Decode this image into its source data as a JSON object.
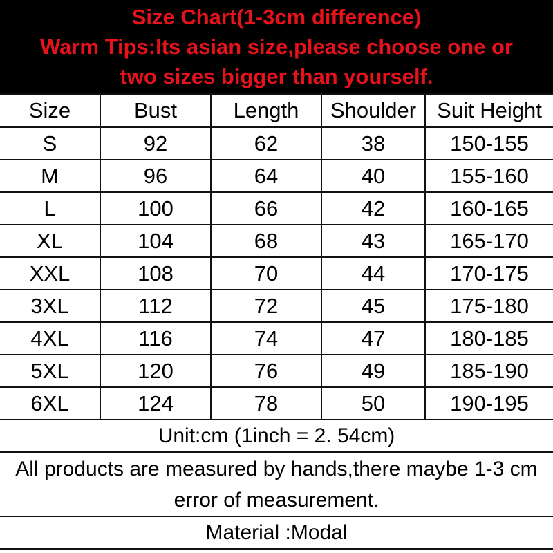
{
  "header": {
    "title": "Size Chart(1-3cm difference)",
    "tip_line1": "Warm Tips:Its asian size,please choose one or",
    "tip_line2": "two sizes bigger than yourself."
  },
  "table": {
    "columns": [
      "Size",
      "Bust",
      "Length",
      "Shoulder",
      "Suit Height"
    ],
    "rows": [
      [
        "S",
        "92",
        "62",
        "38",
        "150-155"
      ],
      [
        "M",
        "96",
        "64",
        "40",
        "155-160"
      ],
      [
        "L",
        "100",
        "66",
        "42",
        "160-165"
      ],
      [
        "XL",
        "104",
        "68",
        "43",
        "165-170"
      ],
      [
        "XXL",
        "108",
        "70",
        "44",
        "170-175"
      ],
      [
        "3XL",
        "112",
        "72",
        "45",
        "175-180"
      ],
      [
        "4XL",
        "116",
        "74",
        "47",
        "180-185"
      ],
      [
        "5XL",
        "120",
        "76",
        "49",
        "185-190"
      ],
      [
        "6XL",
        "124",
        "78",
        "50",
        "190-195"
      ]
    ]
  },
  "footer": {
    "unit": "Unit:cm (1inch = 2. 54cm)",
    "note": "All products are measured by hands,there maybe 1-3 cm error of measurement.",
    "material": "Material :Modal"
  },
  "colors": {
    "header_bg": "#000000",
    "header_text": "#e8121b"
  }
}
